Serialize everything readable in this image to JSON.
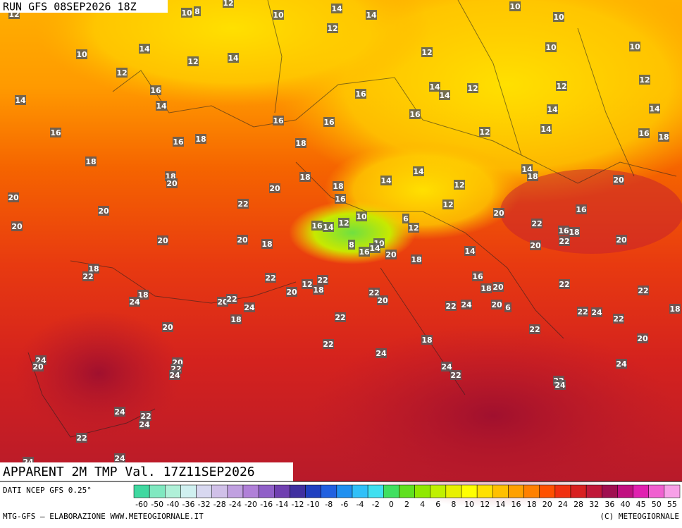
{
  "header": {
    "run": "RUN GFS 08SEP2026 18Z",
    "title": "APPARENT 2M TMP Val. 17Z11SEP2026"
  },
  "footer": {
    "source": "DATI NCEP GFS 0.25°",
    "credits": "MTG-GFS — ELABORAZIONE WWW.METEOGIORNALE.IT",
    "copyright": "(C) METEOGIORNALE"
  },
  "scale": {
    "labels": [
      -60,
      -50,
      -40,
      -36,
      -32,
      -28,
      -24,
      -20,
      -16,
      -14,
      -12,
      -10,
      -8,
      -6,
      -4,
      -2,
      0,
      2,
      4,
      6,
      8,
      10,
      12,
      14,
      16,
      18,
      20,
      24,
      28,
      32,
      36,
      40,
      45,
      50,
      55
    ],
    "colors": [
      "#40d8a0",
      "#80e8c0",
      "#b0f0d8",
      "#d0f0f0",
      "#d8d8f0",
      "#d0c0e8",
      "#c0a0e0",
      "#b080d8",
      "#9060c8",
      "#7040b0",
      "#4030a0",
      "#2040c0",
      "#2060e0",
      "#2090f0",
      "#30c0f8",
      "#40e0f0",
      "#40e060",
      "#60e020",
      "#90e800",
      "#c0f000",
      "#e8f000",
      "#ffff00",
      "#ffe000",
      "#ffc000",
      "#ffa000",
      "#ff8000",
      "#ff5000",
      "#f03010",
      "#d82020",
      "#c01838",
      "#a01050",
      "#c01080",
      "#e020b0",
      "#f060d0",
      "#f8a0e8"
    ]
  },
  "map": {
    "labels": [
      10,
      8,
      12,
      10,
      14,
      14,
      10,
      10,
      12,
      12,
      10,
      14,
      12,
      14,
      12,
      10,
      10,
      12,
      12,
      16,
      14,
      14,
      16,
      14,
      14,
      12,
      12,
      14,
      14,
      16,
      16,
      16,
      16,
      12,
      14,
      16,
      18,
      16,
      18,
      18,
      18,
      14,
      14,
      18,
      18,
      20,
      18,
      14,
      12,
      20,
      20,
      20,
      18,
      22,
      16,
      12,
      20,
      16,
      20,
      10,
      6,
      20,
      16,
      14,
      12,
      12,
      22,
      16,
      18,
      20,
      20,
      18,
      8,
      10,
      16,
      14,
      20,
      22,
      20,
      20,
      14,
      18,
      22,
      18,
      22,
      12,
      22,
      18,
      16,
      18,
      20,
      22,
      22,
      18,
      24,
      20,
      22,
      20,
      20,
      22,
      24,
      22,
      24,
      20,
      6,
      22,
      24,
      18,
      22,
      18,
      22,
      20,
      22,
      22,
      18,
      20,
      24,
      24,
      20,
      20,
      22,
      24,
      24,
      22,
      24,
      22,
      24,
      24,
      22,
      24,
      22,
      24,
      24
    ]
  }
}
